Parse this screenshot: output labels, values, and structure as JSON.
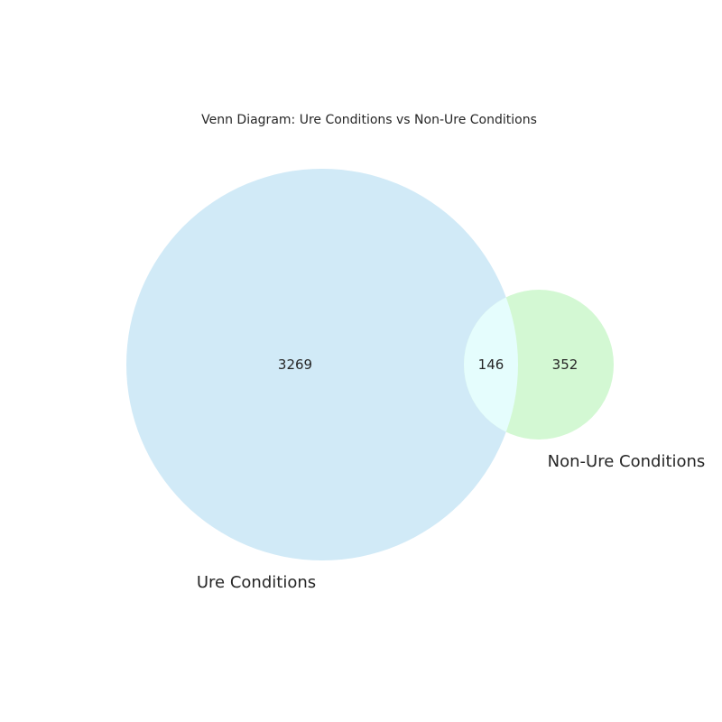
{
  "title": "Venn Diagram: Ure Conditions vs Non-Ure Conditions",
  "chart_data": {
    "type": "venn",
    "sets": [
      {
        "name": "Ure Conditions",
        "only_count": "3269",
        "color": "#d1eaf7"
      },
      {
        "name": "Non-Ure Conditions",
        "only_count": "352",
        "color": "#d3f8d3"
      }
    ],
    "intersection": {
      "count": "146",
      "color": "#e5fdfd"
    }
  }
}
